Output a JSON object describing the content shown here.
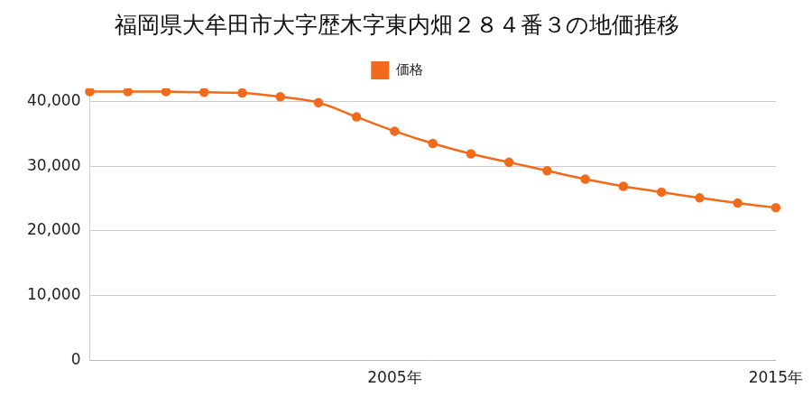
{
  "chart_data": {
    "type": "line",
    "title": "福岡県大牟田市大字歴木字東内畑２８４番３の地価推移",
    "categories": [
      null,
      null,
      null,
      null,
      null,
      null,
      null,
      null,
      "2005年",
      null,
      null,
      null,
      null,
      null,
      null,
      null,
      null,
      null,
      "2015年"
    ],
    "series": [
      {
        "name": "価格",
        "color": "#f26a1b",
        "marker": "circle",
        "line_style": "solid",
        "values": [
          41500,
          41500,
          41500,
          41400,
          41300,
          40700,
          39800,
          37600,
          35400,
          33500,
          31900,
          30600,
          29300,
          28000,
          26900,
          26000,
          25100,
          24300,
          23600
        ]
      }
    ],
    "ylim": [
      0,
      42000
    ],
    "yticks": [
      0,
      {
        "value": 10000,
        "label": "10,000"
      },
      {
        "value": 20000,
        "label": "20,000"
      },
      {
        "value": 30000,
        "label": "30,000"
      },
      {
        "value": 40000,
        "label": "40,000"
      }
    ],
    "grid": true,
    "legend": "top"
  }
}
